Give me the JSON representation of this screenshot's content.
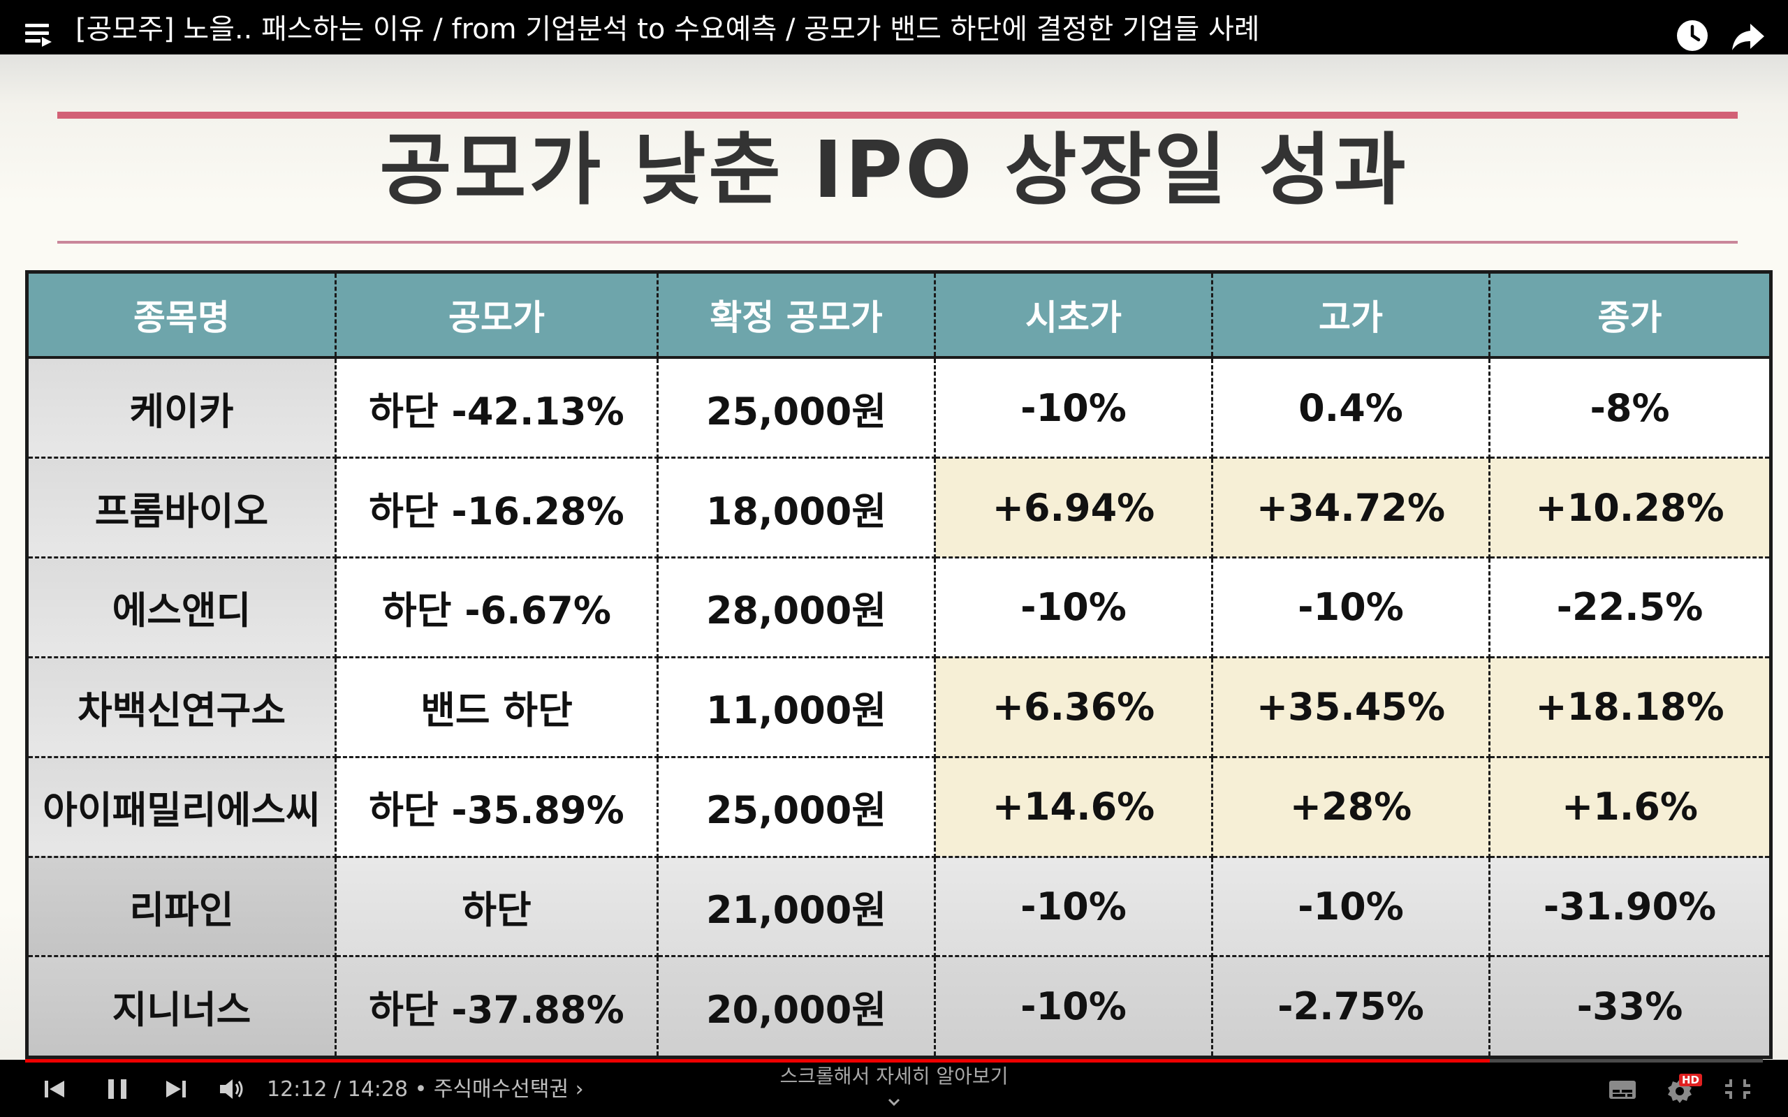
{
  "top_bar": {
    "title": "[공모주] 노을.. 패스하는 이유 / from 기업분석 to 수요예측 / 공모가 밴드 하단에 결정한 기업들 사례",
    "icons": [
      "playlist-icon",
      "watch-later-icon",
      "share-icon"
    ]
  },
  "slide": {
    "title": "공모가 낮춘 IPO 상장일 성과",
    "colors": {
      "accent_line": "#d26176",
      "header_bg": "#6ea5ab",
      "positive_bg": "#f6efd6"
    },
    "table": {
      "headers": [
        "종목명",
        "공모가",
        "확정 공모가",
        "시초가",
        "고가",
        "종가"
      ],
      "rows": [
        {
          "name": "케이카",
          "ipo": "하단 -42.13%",
          "final": "25,000원",
          "open": "-10%",
          "high": "0.4%",
          "close": "-8%"
        },
        {
          "name": "프롬바이오",
          "ipo": "하단 -16.28%",
          "final": "18,000원",
          "open": "+6.94%",
          "high": "+34.72%",
          "close": "+10.28%"
        },
        {
          "name": "에스앤디",
          "ipo": "하단 -6.67%",
          "final": "28,000원",
          "open": "-10%",
          "high": "-10%",
          "close": "-22.5%"
        },
        {
          "name": "차백신연구소",
          "ipo": "밴드 하단",
          "final": "11,000원",
          "open": "+6.36%",
          "high": "+35.45%",
          "close": "+18.18%"
        },
        {
          "name": "아이패밀리에스씨",
          "ipo": "하단 -35.89%",
          "final": "25,000원",
          "open": "+14.6%",
          "high": "+28%",
          "close": "+1.6%"
        },
        {
          "name": "리파인",
          "ipo": "하단",
          "final": "21,000원",
          "open": "-10%",
          "high": "-10%",
          "close": "-31.90%"
        },
        {
          "name": "지니너스",
          "ipo": "하단 -37.88%",
          "final": "20,000원",
          "open": "-10%",
          "high": "-2.75%",
          "close": "-33%"
        }
      ]
    }
  },
  "player": {
    "time": "12:12 / 14:28 • 주식매수선택권 ›",
    "progress": 0.843,
    "scroll_hint": "스크롤해서 자세히 알아보기",
    "hd_badge": "HD",
    "controls": [
      "previous-icon",
      "pause-icon",
      "next-icon",
      "volume-icon",
      "subtitles-icon",
      "settings-icon",
      "exit-fullscreen-icon"
    ]
  }
}
